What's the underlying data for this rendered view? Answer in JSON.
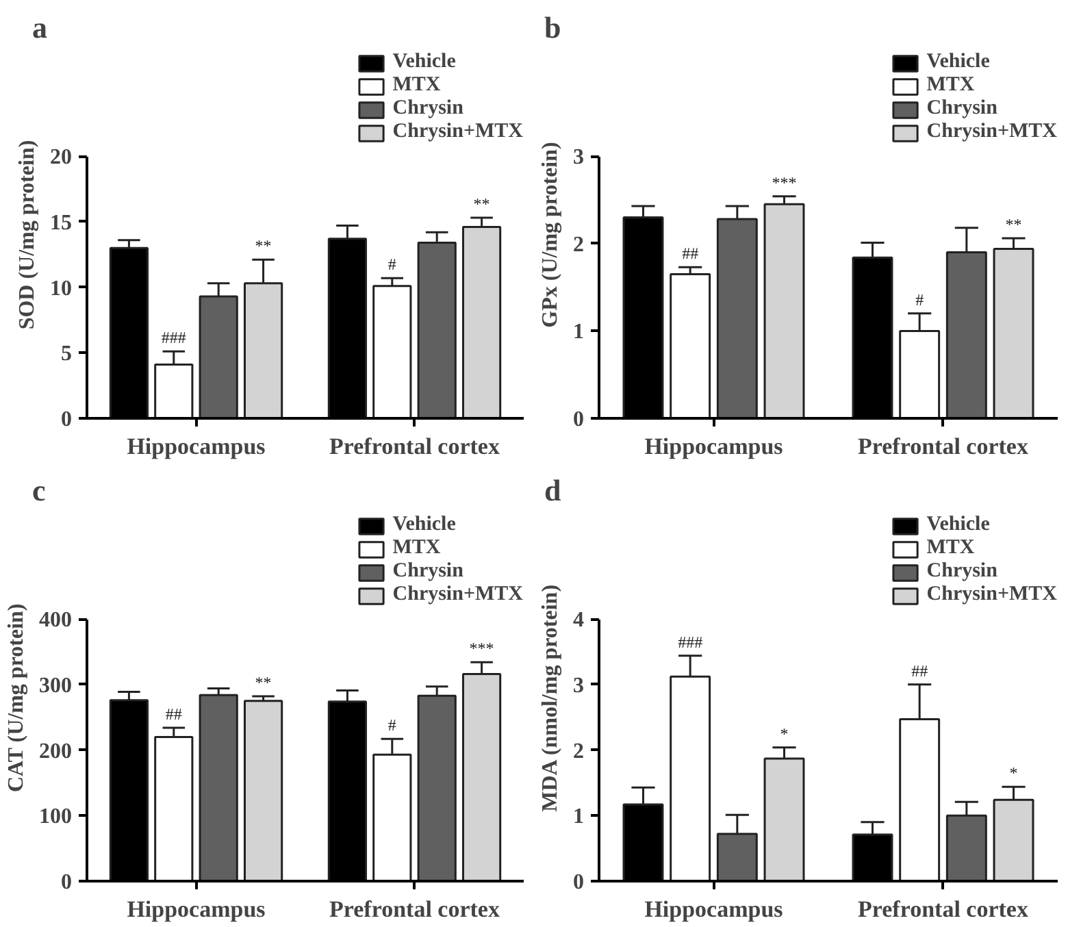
{
  "chart_data": [
    {
      "type": "bar",
      "title": "a",
      "ylabel": "SOD (U/mg protein)",
      "categories": [
        "Hippocampus",
        "Prefrontal cortex"
      ],
      "ylim": [
        0,
        20
      ],
      "yticks": [
        0,
        5,
        10,
        15,
        20
      ],
      "legend": "top right",
      "series": [
        {
          "name": "Vehicle",
          "color": "#000000",
          "values": [
            13.0,
            13.7
          ],
          "errors": [
            0.6,
            1.0
          ]
        },
        {
          "name": "MTX",
          "color": "#ffffff",
          "values": [
            4.1,
            10.1
          ],
          "errors": [
            1.0,
            0.6
          ],
          "value_labels": [
            "###",
            "#"
          ]
        },
        {
          "name": "Chrysin",
          "color": "#606060",
          "values": [
            9.3,
            13.4
          ],
          "errors": [
            1.0,
            0.8
          ]
        },
        {
          "name": "Chrysin+MTX",
          "color": "#d3d3d3",
          "values": [
            10.3,
            14.6
          ],
          "errors": [
            1.8,
            0.7
          ],
          "value_labels": [
            "**",
            "**"
          ]
        }
      ]
    },
    {
      "type": "bar",
      "title": "b",
      "ylabel": "GPx (U/mg protein)",
      "categories": [
        "Hippocampus",
        "Prefrontal cortex"
      ],
      "ylim": [
        0,
        3
      ],
      "yticks": [
        0,
        1,
        2,
        3
      ],
      "legend": "top right",
      "series": [
        {
          "name": "Vehicle",
          "color": "#000000",
          "values": [
            2.3,
            1.84
          ],
          "errors": [
            0.13,
            0.17
          ]
        },
        {
          "name": "MTX",
          "color": "#ffffff",
          "values": [
            1.65,
            1.0
          ],
          "errors": [
            0.08,
            0.2
          ],
          "value_labels": [
            "##",
            "#"
          ]
        },
        {
          "name": "Chrysin",
          "color": "#606060",
          "values": [
            2.28,
            1.9
          ],
          "errors": [
            0.15,
            0.28
          ]
        },
        {
          "name": "Chrysin+MTX",
          "color": "#d3d3d3",
          "values": [
            2.45,
            1.94
          ],
          "errors": [
            0.09,
            0.12
          ],
          "value_labels": [
            "***",
            "**"
          ]
        }
      ]
    },
    {
      "type": "bar",
      "title": "c",
      "ylabel": "CAT (U/mg protein)",
      "categories": [
        "Hippocampus",
        "Prefrontal cortex"
      ],
      "ylim": [
        0,
        400
      ],
      "yticks": [
        0,
        100,
        200,
        300,
        400
      ],
      "legend": "top right",
      "series": [
        {
          "name": "Vehicle",
          "color": "#000000",
          "values": [
            276,
            274
          ],
          "errors": [
            13,
            17
          ]
        },
        {
          "name": "MTX",
          "color": "#ffffff",
          "values": [
            220,
            193
          ],
          "errors": [
            14,
            24
          ],
          "value_labels": [
            "##",
            "#"
          ]
        },
        {
          "name": "Chrysin",
          "color": "#606060",
          "values": [
            284,
            283
          ],
          "errors": [
            10,
            14
          ]
        },
        {
          "name": "Chrysin+MTX",
          "color": "#d3d3d3",
          "values": [
            275,
            316
          ],
          "errors": [
            7,
            18
          ],
          "value_labels": [
            "**",
            "***"
          ]
        }
      ]
    },
    {
      "type": "bar",
      "title": "d",
      "ylabel": "MDA (nmol/mg protein)",
      "categories": [
        "Hippocampus",
        "Prefrontal cortex"
      ],
      "ylim": [
        0,
        4
      ],
      "yticks": [
        0,
        1,
        2,
        3,
        4
      ],
      "legend": "top right",
      "series": [
        {
          "name": "Vehicle",
          "color": "#000000",
          "values": [
            1.17,
            0.71
          ],
          "errors": [
            0.26,
            0.19
          ]
        },
        {
          "name": "MTX",
          "color": "#ffffff",
          "values": [
            3.12,
            2.47
          ],
          "errors": [
            0.32,
            0.53
          ],
          "value_labels": [
            "###",
            "##"
          ]
        },
        {
          "name": "Chrysin",
          "color": "#606060",
          "values": [
            0.72,
            1.0
          ],
          "errors": [
            0.29,
            0.21
          ]
        },
        {
          "name": "Chrysin+MTX",
          "color": "#d3d3d3",
          "values": [
            1.87,
            1.24
          ],
          "errors": [
            0.17,
            0.2
          ],
          "value_labels": [
            "*",
            "*"
          ]
        }
      ]
    }
  ]
}
